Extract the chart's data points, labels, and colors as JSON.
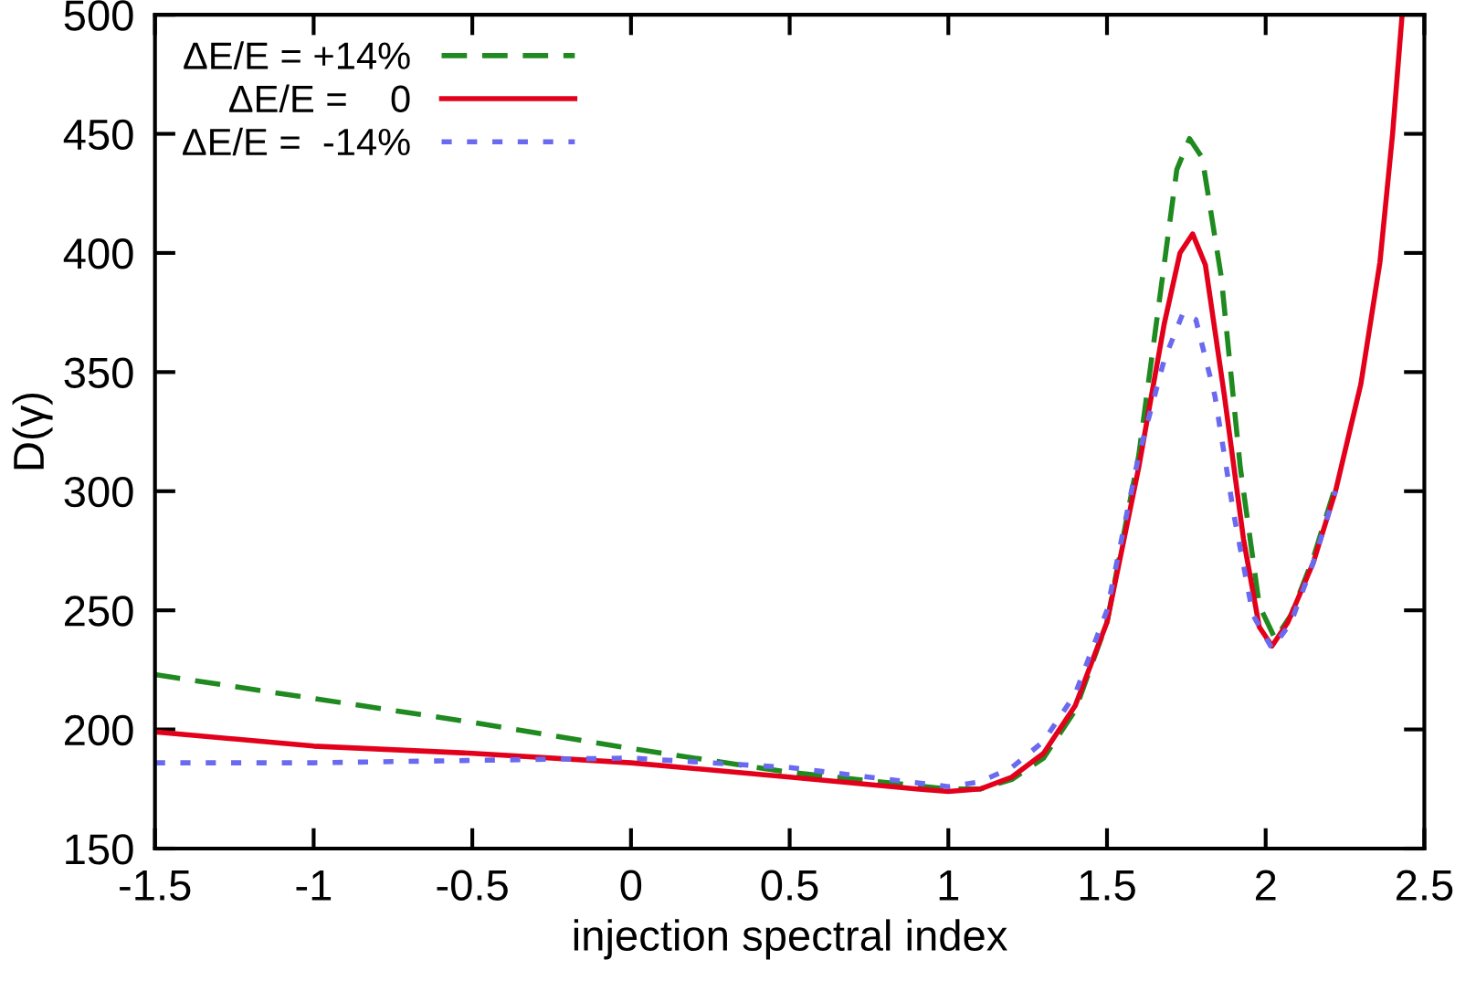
{
  "chart_data": {
    "type": "line",
    "xlabel": "injection spectral index",
    "ylabel": "D(γ)",
    "xlim": [
      -1.5,
      2.5
    ],
    "ylim": [
      150,
      500
    ],
    "xticks": [
      -1.5,
      -1,
      -0.5,
      0,
      0.5,
      1,
      1.5,
      2,
      2.5
    ],
    "yticks": [
      150,
      200,
      250,
      300,
      350,
      400,
      450,
      500
    ],
    "grid": false,
    "legend": "top left",
    "marker": "none",
    "series": [
      {
        "name": "ΔE/E = +14%",
        "color": "#1f8a1f",
        "line_style": "dashed",
        "x": [
          -1.5,
          -1,
          -0.5,
          0,
          0.5,
          1.0,
          1.1,
          1.2,
          1.3,
          1.4,
          1.5,
          1.6,
          1.67,
          1.72,
          1.76,
          1.8,
          1.86,
          1.92,
          1.98,
          2.03,
          2.08,
          2.15,
          2.22
        ],
        "values": [
          223,
          213,
          203,
          192,
          182,
          175,
          175,
          179,
          188,
          208,
          245,
          315,
          385,
          435,
          448,
          440,
          390,
          310,
          252,
          238,
          248,
          272,
          302
        ]
      },
      {
        "name": "ΔE/E =    0",
        "color": "#e3001b",
        "line_style": "solid",
        "x": [
          -1.5,
          -1,
          -0.5,
          0,
          0.5,
          0.9,
          1.0,
          1.1,
          1.2,
          1.3,
          1.4,
          1.5,
          1.6,
          1.68,
          1.73,
          1.77,
          1.81,
          1.87,
          1.93,
          1.98,
          2.02,
          2.07,
          2.15,
          2.22,
          2.3,
          2.36,
          2.4,
          2.43
        ],
        "values": [
          199,
          193,
          190,
          186,
          180,
          175,
          174,
          175,
          180,
          190,
          210,
          245,
          310,
          370,
          400,
          408,
          395,
          340,
          280,
          243,
          235,
          245,
          270,
          300,
          345,
          396,
          450,
          500
        ]
      },
      {
        "name": "ΔE/E =  -14%",
        "color": "#6a6af0",
        "line_style": "dotted",
        "x": [
          -1.5,
          -1,
          -0.5,
          0,
          0.5,
          1.0,
          1.1,
          1.2,
          1.3,
          1.4,
          1.5,
          1.6,
          1.68,
          1.74,
          1.78,
          1.84,
          1.9,
          1.96,
          2.02,
          2.08,
          2.15,
          2.22
        ],
        "values": [
          186,
          186,
          187,
          188,
          184,
          176,
          178,
          184,
          195,
          215,
          250,
          315,
          355,
          375,
          372,
          340,
          290,
          248,
          234,
          245,
          270,
          300
        ]
      }
    ]
  }
}
